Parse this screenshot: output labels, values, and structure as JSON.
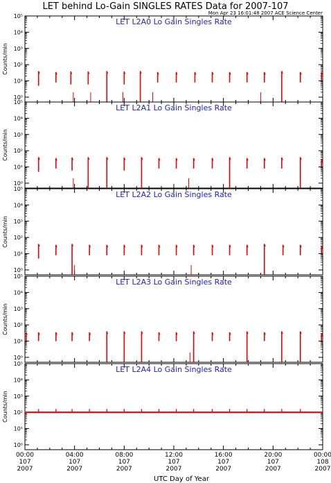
{
  "title": "LET behind Lo-Gain SINGLES RATES Data for 2007-107",
  "timestamp": "Mon Apr 23 16:01:48 2007 ACE Science Center",
  "xlabel": "UTC Day of Year",
  "colors": {
    "series": "#ee0000",
    "panel_title": "#2222cc",
    "axis": "#000000"
  },
  "x_ticks": [
    {
      "time": "00:00",
      "doy": "107",
      "year": "2007"
    },
    {
      "time": "04:00",
      "doy": "107",
      "year": "2007"
    },
    {
      "time": "08:00",
      "doy": "107",
      "year": "2007"
    },
    {
      "time": "12:00",
      "doy": "107",
      "year": "2007"
    },
    {
      "time": "16:00",
      "doy": "107",
      "year": "2007"
    },
    {
      "time": "20:00",
      "doy": "107",
      "year": "2007"
    },
    {
      "time": "00:00",
      "doy": "108",
      "year": "2007"
    }
  ],
  "chart_data": [
    {
      "type": "line",
      "title": "LET L2A0 Lo Gain Singles Rate",
      "ylabel": "Counts/min",
      "yscale": "log",
      "ylim": [
        0.5,
        100000
      ],
      "xlim_hours": [
        0,
        24
      ],
      "yticks": [
        "10⁰",
        "10¹",
        "10²",
        "10³",
        "10⁴",
        "10⁵"
      ],
      "bursts": [
        {
          "t": 1.1,
          "min": 5,
          "max": 40
        },
        {
          "t": 2.5,
          "min": 8,
          "max": 35
        },
        {
          "t": 3.7,
          "min": 6,
          "max": 38
        },
        {
          "t": 5.1,
          "min": 6,
          "max": 38
        },
        {
          "t": 6.6,
          "min": 0.5,
          "max": 40
        },
        {
          "t": 8.0,
          "min": 6,
          "max": 38
        },
        {
          "t": 9.3,
          "min": 0.5,
          "max": 40
        },
        {
          "t": 10.7,
          "min": 8,
          "max": 35
        },
        {
          "t": 12.2,
          "min": 8,
          "max": 35
        },
        {
          "t": 13.7,
          "min": 8,
          "max": 35
        },
        {
          "t": 15.1,
          "min": 8,
          "max": 35
        },
        {
          "t": 16.5,
          "min": 8,
          "max": 35
        },
        {
          "t": 17.9,
          "min": 8,
          "max": 35
        },
        {
          "t": 19.3,
          "min": 8,
          "max": 35
        },
        {
          "t": 20.7,
          "min": 0.5,
          "max": 40
        },
        {
          "t": 22.2,
          "min": 8,
          "max": 35
        },
        {
          "t": 23.9,
          "min": 10,
          "max": 35
        }
      ],
      "spikes": [
        3.9,
        5.3,
        7.9,
        10.3,
        19.0
      ]
    },
    {
      "type": "line",
      "title": "LET L2A1 Lo Gain Singles Rate",
      "ylabel": "Counts/min",
      "yscale": "log",
      "ylim": [
        0.5,
        100000
      ],
      "xlim_hours": [
        0,
        24
      ],
      "yticks": [
        "10⁰",
        "10¹",
        "10²",
        "10³",
        "10⁴",
        "10⁵"
      ],
      "bursts": [
        {
          "t": 1.1,
          "min": 5,
          "max": 40
        },
        {
          "t": 2.5,
          "min": 8,
          "max": 35
        },
        {
          "t": 3.8,
          "min": 6,
          "max": 38
        },
        {
          "t": 5.1,
          "min": 0.5,
          "max": 40
        },
        {
          "t": 6.6,
          "min": 0.5,
          "max": 40
        },
        {
          "t": 8.0,
          "min": 6,
          "max": 38
        },
        {
          "t": 9.4,
          "min": 0.5,
          "max": 40
        },
        {
          "t": 10.8,
          "min": 8,
          "max": 35
        },
        {
          "t": 12.2,
          "min": 8,
          "max": 35
        },
        {
          "t": 13.6,
          "min": 8,
          "max": 35
        },
        {
          "t": 15.1,
          "min": 8,
          "max": 35
        },
        {
          "t": 16.5,
          "min": 0.5,
          "max": 40
        },
        {
          "t": 17.9,
          "min": 8,
          "max": 35
        },
        {
          "t": 19.3,
          "min": 8,
          "max": 35
        },
        {
          "t": 20.7,
          "min": 8,
          "max": 38
        },
        {
          "t": 22.2,
          "min": 0.5,
          "max": 40
        },
        {
          "t": 23.9,
          "min": 10,
          "max": 30
        }
      ],
      "spikes": [
        3.9,
        13.2
      ]
    },
    {
      "type": "line",
      "title": "LET L2A2 Lo Gain Singles Rate",
      "ylabel": "Counts/min",
      "yscale": "log",
      "ylim": [
        0.5,
        100000
      ],
      "xlim_hours": [
        0,
        24
      ],
      "yticks": [
        "10⁰",
        "10¹",
        "10²",
        "10³",
        "10⁴",
        "10⁵"
      ],
      "bursts": [
        {
          "t": 1.1,
          "min": 5,
          "max": 40
        },
        {
          "t": 2.5,
          "min": 8,
          "max": 35
        },
        {
          "t": 3.8,
          "min": 0.5,
          "max": 40
        },
        {
          "t": 5.2,
          "min": 8,
          "max": 35
        },
        {
          "t": 6.6,
          "min": 8,
          "max": 35
        },
        {
          "t": 8.0,
          "min": 8,
          "max": 35
        },
        {
          "t": 9.4,
          "min": 8,
          "max": 35
        },
        {
          "t": 10.8,
          "min": 8,
          "max": 35
        },
        {
          "t": 12.2,
          "min": 8,
          "max": 35
        },
        {
          "t": 13.6,
          "min": 8,
          "max": 35
        },
        {
          "t": 15.1,
          "min": 8,
          "max": 35
        },
        {
          "t": 16.5,
          "min": 8,
          "max": 35
        },
        {
          "t": 17.9,
          "min": 8,
          "max": 35
        },
        {
          "t": 19.3,
          "min": 0.5,
          "max": 40
        },
        {
          "t": 20.8,
          "min": 8,
          "max": 35
        },
        {
          "t": 22.2,
          "min": 8,
          "max": 35
        },
        {
          "t": 23.9,
          "min": 10,
          "max": 30
        }
      ],
      "spikes": [
        4.0,
        13.4
      ]
    },
    {
      "type": "line",
      "title": "LET L2A3 Lo Gain Singles Rate",
      "ylabel": "Counts/min",
      "yscale": "log",
      "ylim": [
        0.5,
        100000
      ],
      "xlim_hours": [
        0,
        24
      ],
      "yticks": [
        "10⁰",
        "10¹",
        "10²",
        "10³",
        "10⁴",
        "10⁵"
      ],
      "bursts": [
        {
          "t": 0.1,
          "min": 10,
          "max": 35
        },
        {
          "t": 1.1,
          "min": 10,
          "max": 35
        },
        {
          "t": 2.5,
          "min": 10,
          "max": 35
        },
        {
          "t": 3.8,
          "min": 10,
          "max": 35
        },
        {
          "t": 5.2,
          "min": 10,
          "max": 35
        },
        {
          "t": 6.6,
          "min": 0.5,
          "max": 40
        },
        {
          "t": 8.0,
          "min": 0.5,
          "max": 40
        },
        {
          "t": 9.4,
          "min": 0.5,
          "max": 40
        },
        {
          "t": 10.8,
          "min": 10,
          "max": 35
        },
        {
          "t": 12.2,
          "min": 10,
          "max": 35
        },
        {
          "t": 13.6,
          "min": 0.5,
          "max": 40
        },
        {
          "t": 15.1,
          "min": 10,
          "max": 35
        },
        {
          "t": 16.5,
          "min": 10,
          "max": 35
        },
        {
          "t": 17.9,
          "min": 0.5,
          "max": 40
        },
        {
          "t": 19.3,
          "min": 10,
          "max": 35
        },
        {
          "t": 20.7,
          "min": 0.5,
          "max": 40
        },
        {
          "t": 22.2,
          "min": 0.5,
          "max": 40
        },
        {
          "t": 23.9,
          "min": 10,
          "max": 30
        }
      ],
      "spikes": [
        13.3
      ]
    },
    {
      "type": "line",
      "title": "LET L2A4 Lo Gain Singles Rate",
      "ylabel": "Counts/min",
      "yscale": "log",
      "ylim": [
        0.5,
        100000
      ],
      "xlim_hours": [
        0,
        24
      ],
      "yticks": [
        "10⁰",
        "10¹",
        "10²",
        "10³",
        "10⁴",
        "10⁵"
      ],
      "baseline": 100,
      "bumps": [
        1.1,
        2.5,
        3.8,
        5.2,
        6.6,
        8.0,
        9.4,
        10.8,
        12.2,
        13.6,
        15.1,
        16.5,
        17.9,
        19.3,
        20.7,
        22.2
      ]
    }
  ]
}
